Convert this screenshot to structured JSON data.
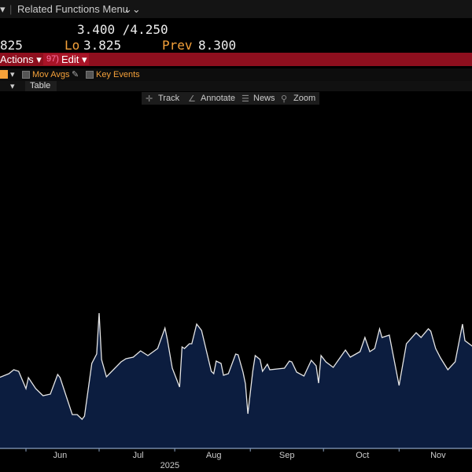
{
  "topbar": {
    "dropdown": "▾",
    "menu_label": "Related Functions Menu",
    "menu_icon": "⌄⌄"
  },
  "quote": {
    "bid_ask": "3.400 /4.250",
    "last_partial": "825",
    "lo_label": "Lo",
    "lo_value": "3.825",
    "prev_label": "Prev",
    "prev_value": "8.300"
  },
  "actionbar": {
    "actions": "Actions ▾",
    "edit_code": "97)",
    "edit": "Edit ▾"
  },
  "chart_options": {
    "mov_avgs": "Mov Avgs",
    "key_events": "Key Events",
    "table_tab": "Table",
    "dropdown": "▾"
  },
  "toolbar": {
    "track": "Track",
    "annotate": "Annotate",
    "news": "News",
    "zoom": "Zoom"
  },
  "colors": {
    "area": "#0c1d3f",
    "line": "#e6e6e6",
    "accent": "#f5a13a",
    "bar": "#8e0f1e"
  },
  "chart_data": {
    "type": "area",
    "title": "",
    "xlabel": "2025",
    "ylabel": "",
    "x_units": "days since 2025-06-01",
    "ylim": [
      0,
      200
    ],
    "x_ticks": [
      {
        "day": 0,
        "label": ""
      },
      {
        "day": 30,
        "label": ""
      },
      {
        "day": 61,
        "label": ""
      },
      {
        "day": 92,
        "label": ""
      },
      {
        "day": 122,
        "label": ""
      },
      {
        "day": 153,
        "label": ""
      }
    ],
    "month_labels": [
      {
        "day": 14,
        "label": "Jun"
      },
      {
        "day": 46,
        "label": "Jul"
      },
      {
        "day": 77,
        "label": "Aug"
      },
      {
        "day": 107,
        "label": "Sep"
      },
      {
        "day": 138,
        "label": "Oct"
      },
      {
        "day": 169,
        "label": "Nov"
      }
    ],
    "year_label": "2025",
    "x": [
      -11,
      -7,
      -5,
      -3,
      0,
      1,
      4,
      7,
      10,
      13,
      14,
      19,
      21,
      23,
      24,
      27,
      29,
      30,
      31,
      33,
      39,
      41,
      44,
      47,
      50,
      54,
      57,
      58,
      60,
      63,
      64,
      65,
      67,
      68,
      70,
      72,
      76,
      77,
      78,
      80,
      81,
      83,
      86,
      87,
      89,
      90,
      91,
      93,
      94,
      96,
      97,
      99,
      100,
      106,
      108,
      109,
      111,
      114,
      117,
      119,
      120,
      121,
      123,
      126,
      131,
      133,
      137,
      139,
      141,
      143,
      145,
      146,
      149,
      150,
      153,
      156,
      160,
      162,
      165,
      166,
      168,
      170,
      173,
      176,
      179,
      180,
      183
    ],
    "values": [
      90,
      95,
      100,
      98,
      76,
      90,
      76,
      67,
      69,
      94,
      90,
      43,
      43,
      37,
      41,
      108,
      120,
      172,
      113,
      91,
      110,
      114,
      116,
      124,
      118,
      127,
      153,
      138,
      102,
      78,
      129,
      127,
      133,
      133,
      158,
      150,
      98,
      95,
      111,
      108,
      93,
      95,
      120,
      119,
      97,
      82,
      44,
      98,
      118,
      113,
      98,
      107,
      100,
      102,
      111,
      110,
      97,
      92,
      112,
      105,
      83,
      118,
      110,
      103,
      125,
      116,
      123,
      141,
      123,
      127,
      152,
      141,
      144,
      128,
      80,
      133,
      147,
      141,
      152,
      149,
      127,
      115,
      100,
      110,
      158,
      137,
      130
    ]
  }
}
